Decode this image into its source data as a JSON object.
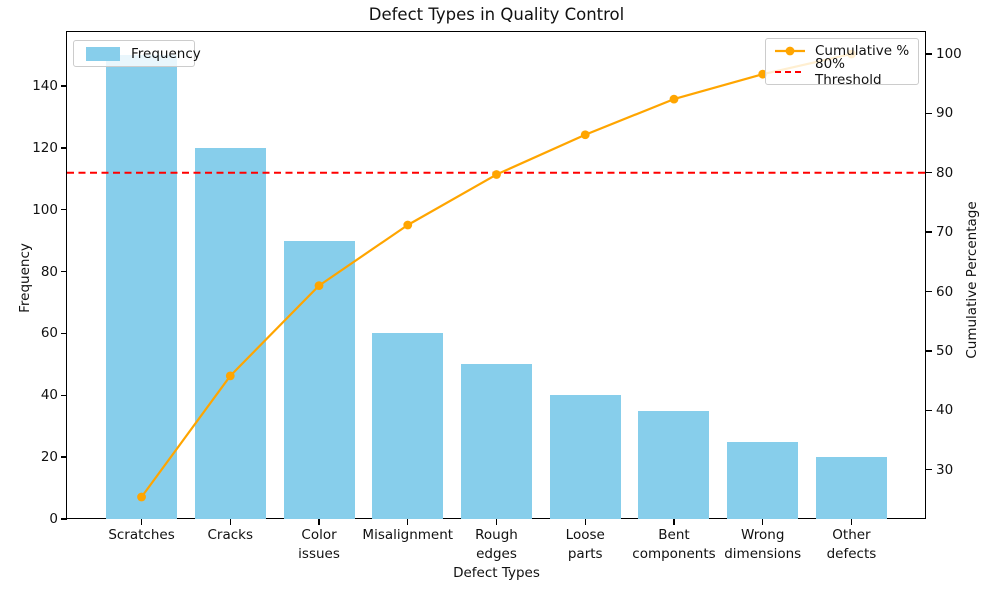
{
  "chart_data": {
    "type": "pareto (bar + line)",
    "title": "Defect Types in Quality Control",
    "xlabel": "Defect Types",
    "ylabel_left": "Frequency",
    "ylabel_right": "Cumulative Percentage",
    "categories": [
      "Scratches",
      "Cracks",
      "Color\nissues",
      "Misalignment",
      "Rough\nedges",
      "Loose\nparts",
      "Bent\ncomponents",
      "Wrong\ndimensions",
      "Other\ndefects"
    ],
    "series": [
      {
        "name": "Frequency",
        "type": "bar",
        "axis": "left",
        "color": "#87CEEB",
        "values": [
          150,
          120,
          90,
          60,
          50,
          40,
          35,
          25,
          20
        ]
      },
      {
        "name": "Cumulative %",
        "type": "line",
        "axis": "right",
        "color": "#FFA500",
        "marker": "circle",
        "values": [
          25.4,
          45.8,
          61.0,
          71.2,
          79.7,
          86.4,
          92.4,
          96.6,
          100.0
        ]
      }
    ],
    "threshold": {
      "label": "80% Threshold",
      "value": 80,
      "color": "#FF0000",
      "style": "dashed"
    },
    "axes": {
      "ylim_left": [
        0,
        157.5
      ],
      "ylim_right": [
        21.7,
        103.7
      ],
      "yticks_left": [
        0,
        20,
        40,
        60,
        80,
        100,
        120,
        140
      ],
      "yticks_right": [
        30,
        40,
        50,
        60,
        70,
        80,
        90,
        100
      ],
      "grid": false
    },
    "legends": {
      "left": {
        "position": "upper left",
        "items": [
          {
            "label": "Frequency"
          }
        ]
      },
      "right": {
        "position": "upper right",
        "items": [
          {
            "label": "Cumulative %"
          },
          {
            "label": "80% Threshold"
          }
        ]
      }
    }
  }
}
